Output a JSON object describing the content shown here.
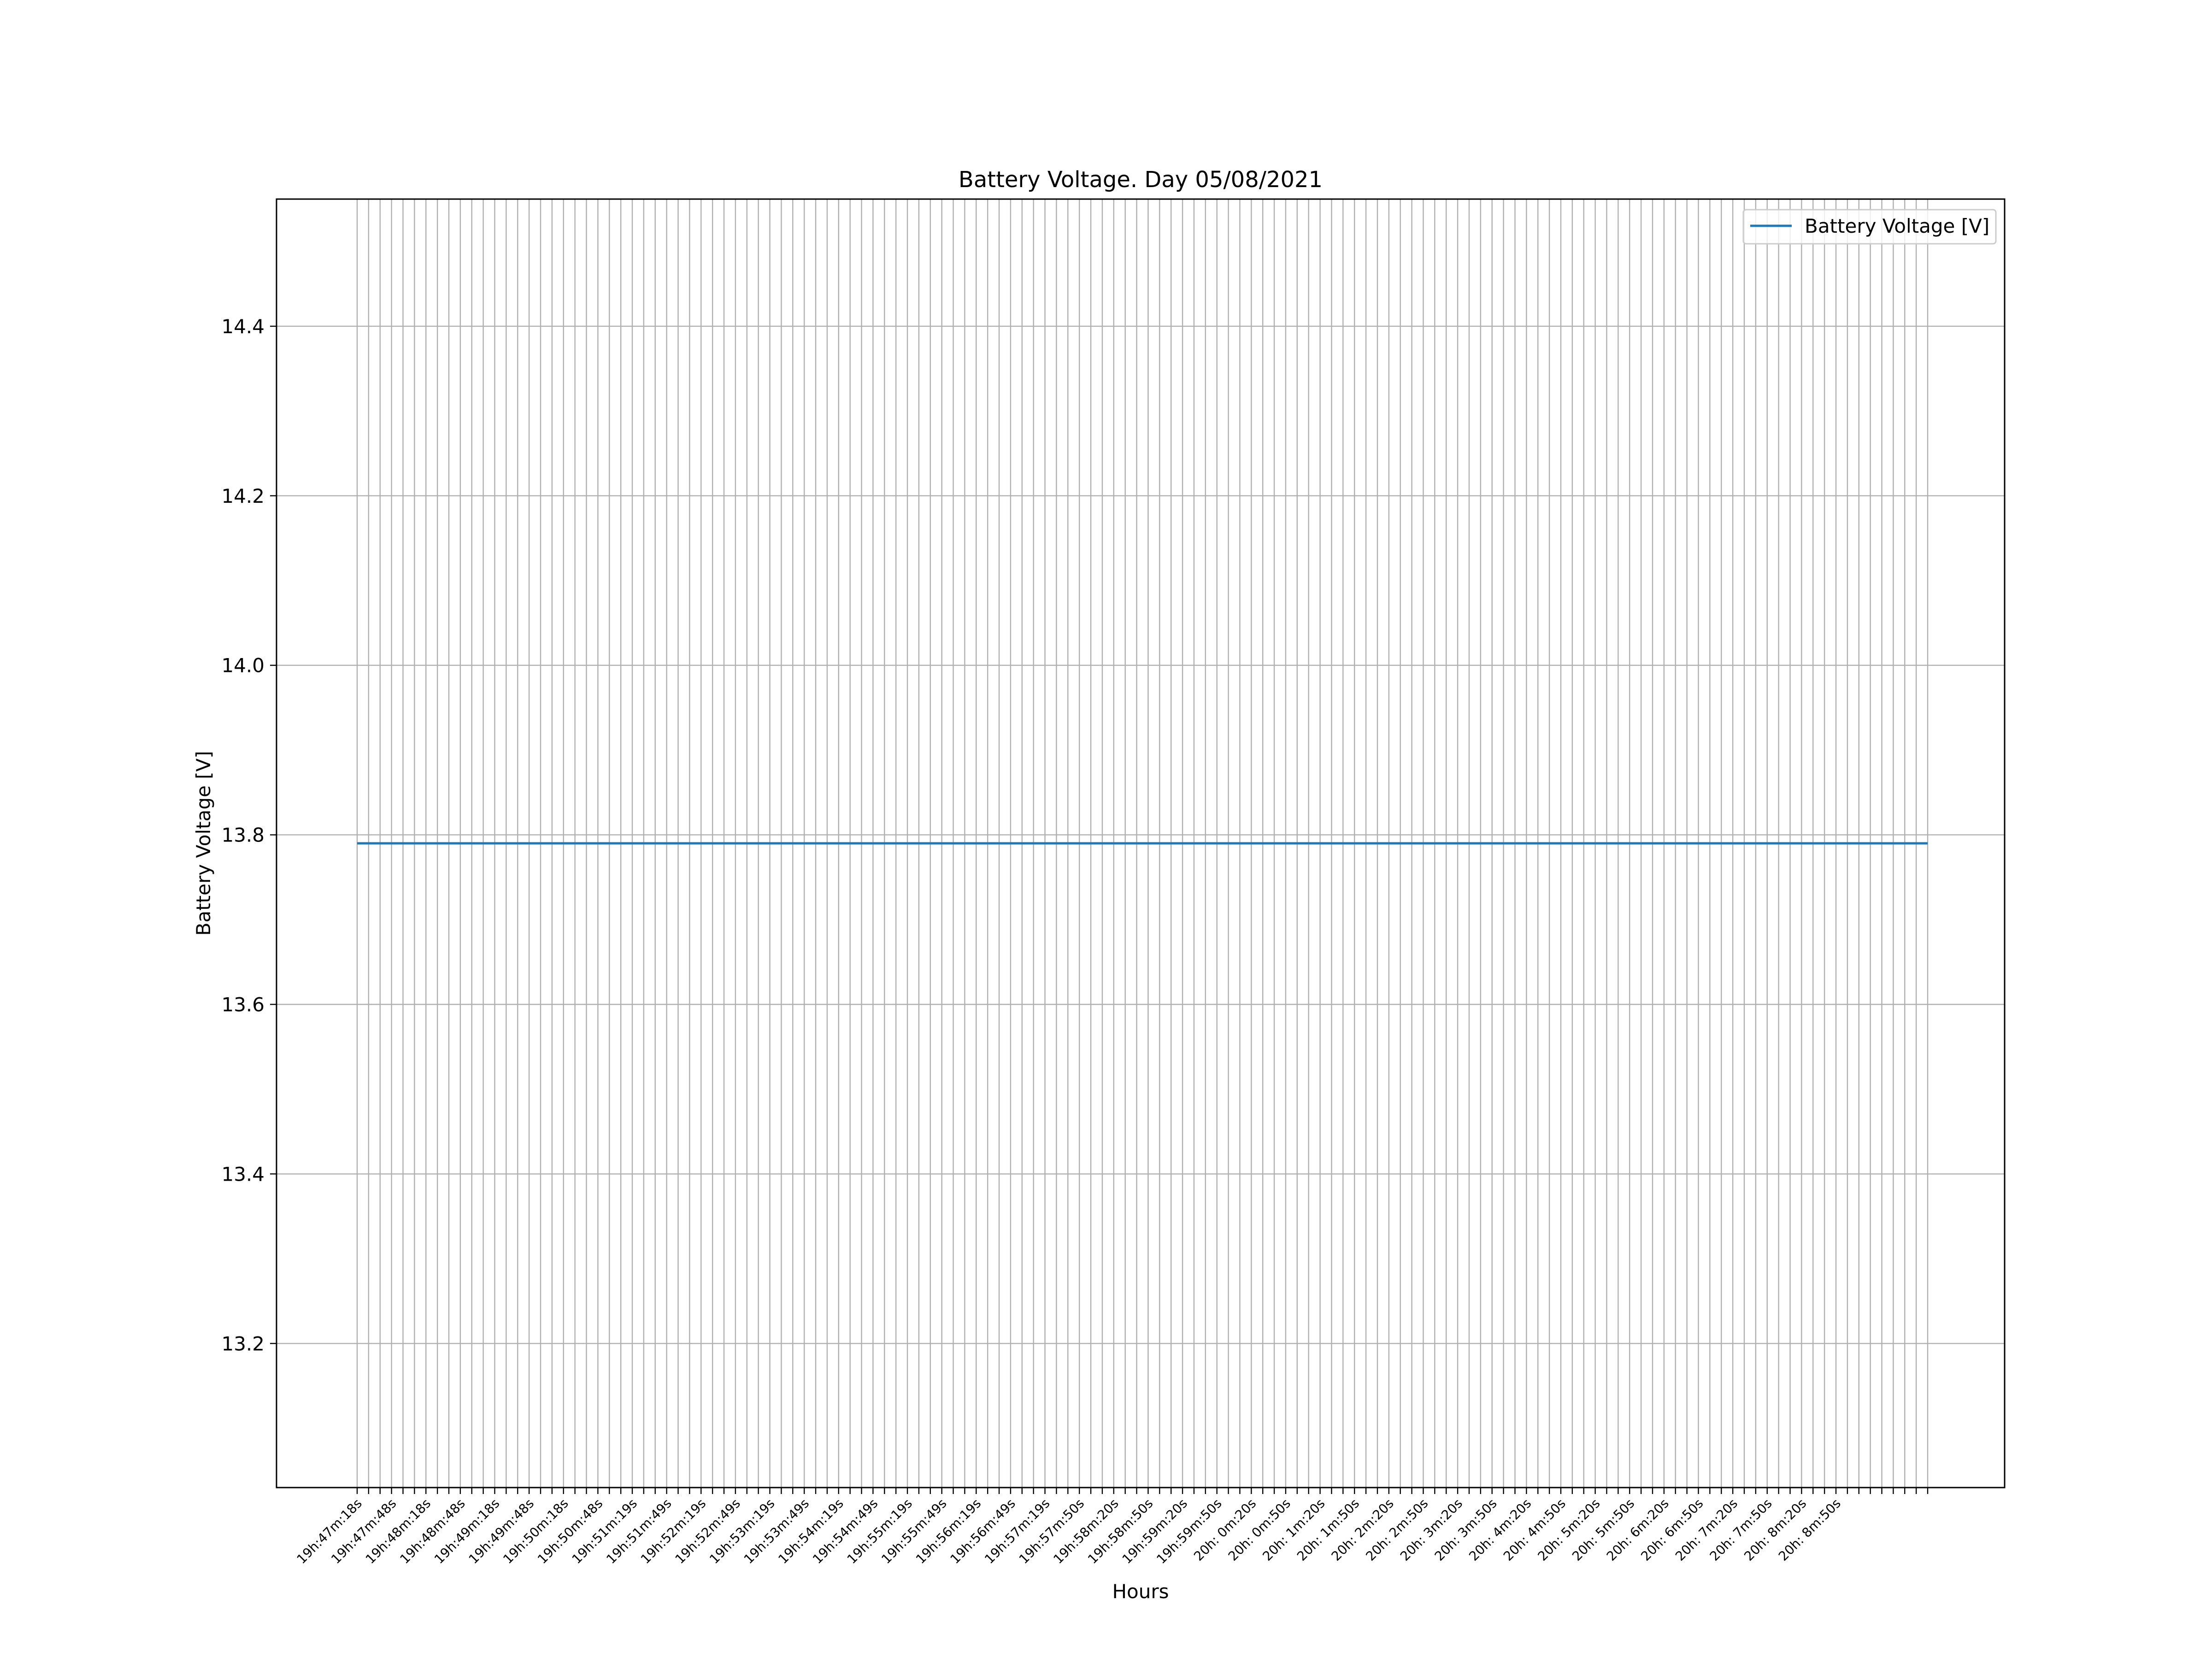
{
  "chart_data": {
    "type": "line",
    "title": "Battery Voltage. Day 05/08/2021",
    "xlabel": "Hours",
    "ylabel": "Battery Voltage [V]",
    "ylim": [
      13.03,
      14.55
    ],
    "yticks": [
      13.2,
      13.4,
      13.6,
      13.8,
      14.0,
      14.2,
      14.4
    ],
    "ytick_labels": [
      "13.2",
      "13.4",
      "13.6",
      "13.8",
      "14.0",
      "14.2",
      "14.4"
    ],
    "x_count": 138,
    "x_label_step": 3,
    "xtick_labels": [
      "19h:47m:18s",
      "19h:47m:48s",
      "19h:48m:18s",
      "19h:48m:48s",
      "19h:49m:18s",
      "19h:49m:48s",
      "19h:50m:18s",
      "19h:50m:48s",
      "19h:51m:19s",
      "19h:51m:49s",
      "19h:52m:19s",
      "19h:52m:49s",
      "19h:53m:19s",
      "19h:53m:49s",
      "19h:54m:19s",
      "19h:54m:49s",
      "19h:55m:19s",
      "19h:55m:49s",
      "19h:56m:19s",
      "19h:56m:49s",
      "19h:57m:19s",
      "19h:57m:50s",
      "19h:58m:20s",
      "19h:58m:50s",
      "19h:59m:20s",
      "19h:59m:50s",
      "20h: 0m:20s",
      "20h: 0m:50s",
      "20h: 1m:20s",
      "20h: 1m:50s",
      "20h: 2m:20s",
      "20h: 2m:50s",
      "20h: 3m:20s",
      "20h: 3m:50s",
      "20h: 4m:20s",
      "20h: 4m:50s",
      "20h: 5m:20s",
      "20h: 5m:50s",
      "20h: 6m:20s",
      "20h: 6m:50s",
      "20h: 7m:20s",
      "20h: 7m:50s",
      "20h: 8m:20s",
      "20h: 8m:50s"
    ],
    "grid": true,
    "legend_position": "top-right",
    "series": [
      {
        "name": "Battery Voltage [V]",
        "color": "#1f77b4",
        "constant_value": 13.79
      }
    ]
  }
}
